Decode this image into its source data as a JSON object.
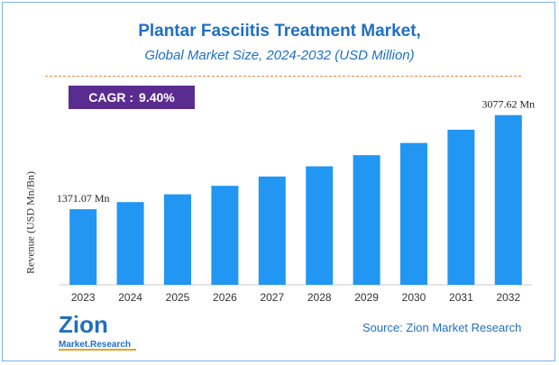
{
  "header": {
    "title": "Plantar Fasciitis Treatment Market,",
    "subtitle": "Global Market Size, 2024-2032 (USD Million)"
  },
  "cagr": {
    "label": "CAGR :",
    "value": "9.40%"
  },
  "source": "Source: Zion Market Research",
  "logo": {
    "line1": "Zion",
    "line2": "Market.Research"
  },
  "colors": {
    "bar": "#2196f3",
    "title": "#1f6fc5",
    "cagr_bg": "#5b2c8f",
    "divider": "#e8894a"
  },
  "chart_data": {
    "type": "bar",
    "categories": [
      "2023",
      "2024",
      "2025",
      "2026",
      "2027",
      "2028",
      "2029",
      "2030",
      "2031",
      "2032"
    ],
    "values": [
      1371.07,
      1500,
      1641,
      1795,
      1964,
      2149,
      2351,
      2572,
      2813,
      3077.62
    ],
    "data_labels": [
      {
        "category": "2023",
        "text": "1371.07 Mn"
      },
      {
        "category": "2032",
        "text": "3077.62 Mn"
      }
    ],
    "title": "Plantar Fasciitis Treatment Market,",
    "subtitle": "Global Market Size, 2024-2032 (USD Million)",
    "xlabel": "",
    "ylabel": "Revenue (USD Mn/Bn)",
    "ylim": [
      0,
      3400
    ],
    "grid": false,
    "legend": "none"
  }
}
